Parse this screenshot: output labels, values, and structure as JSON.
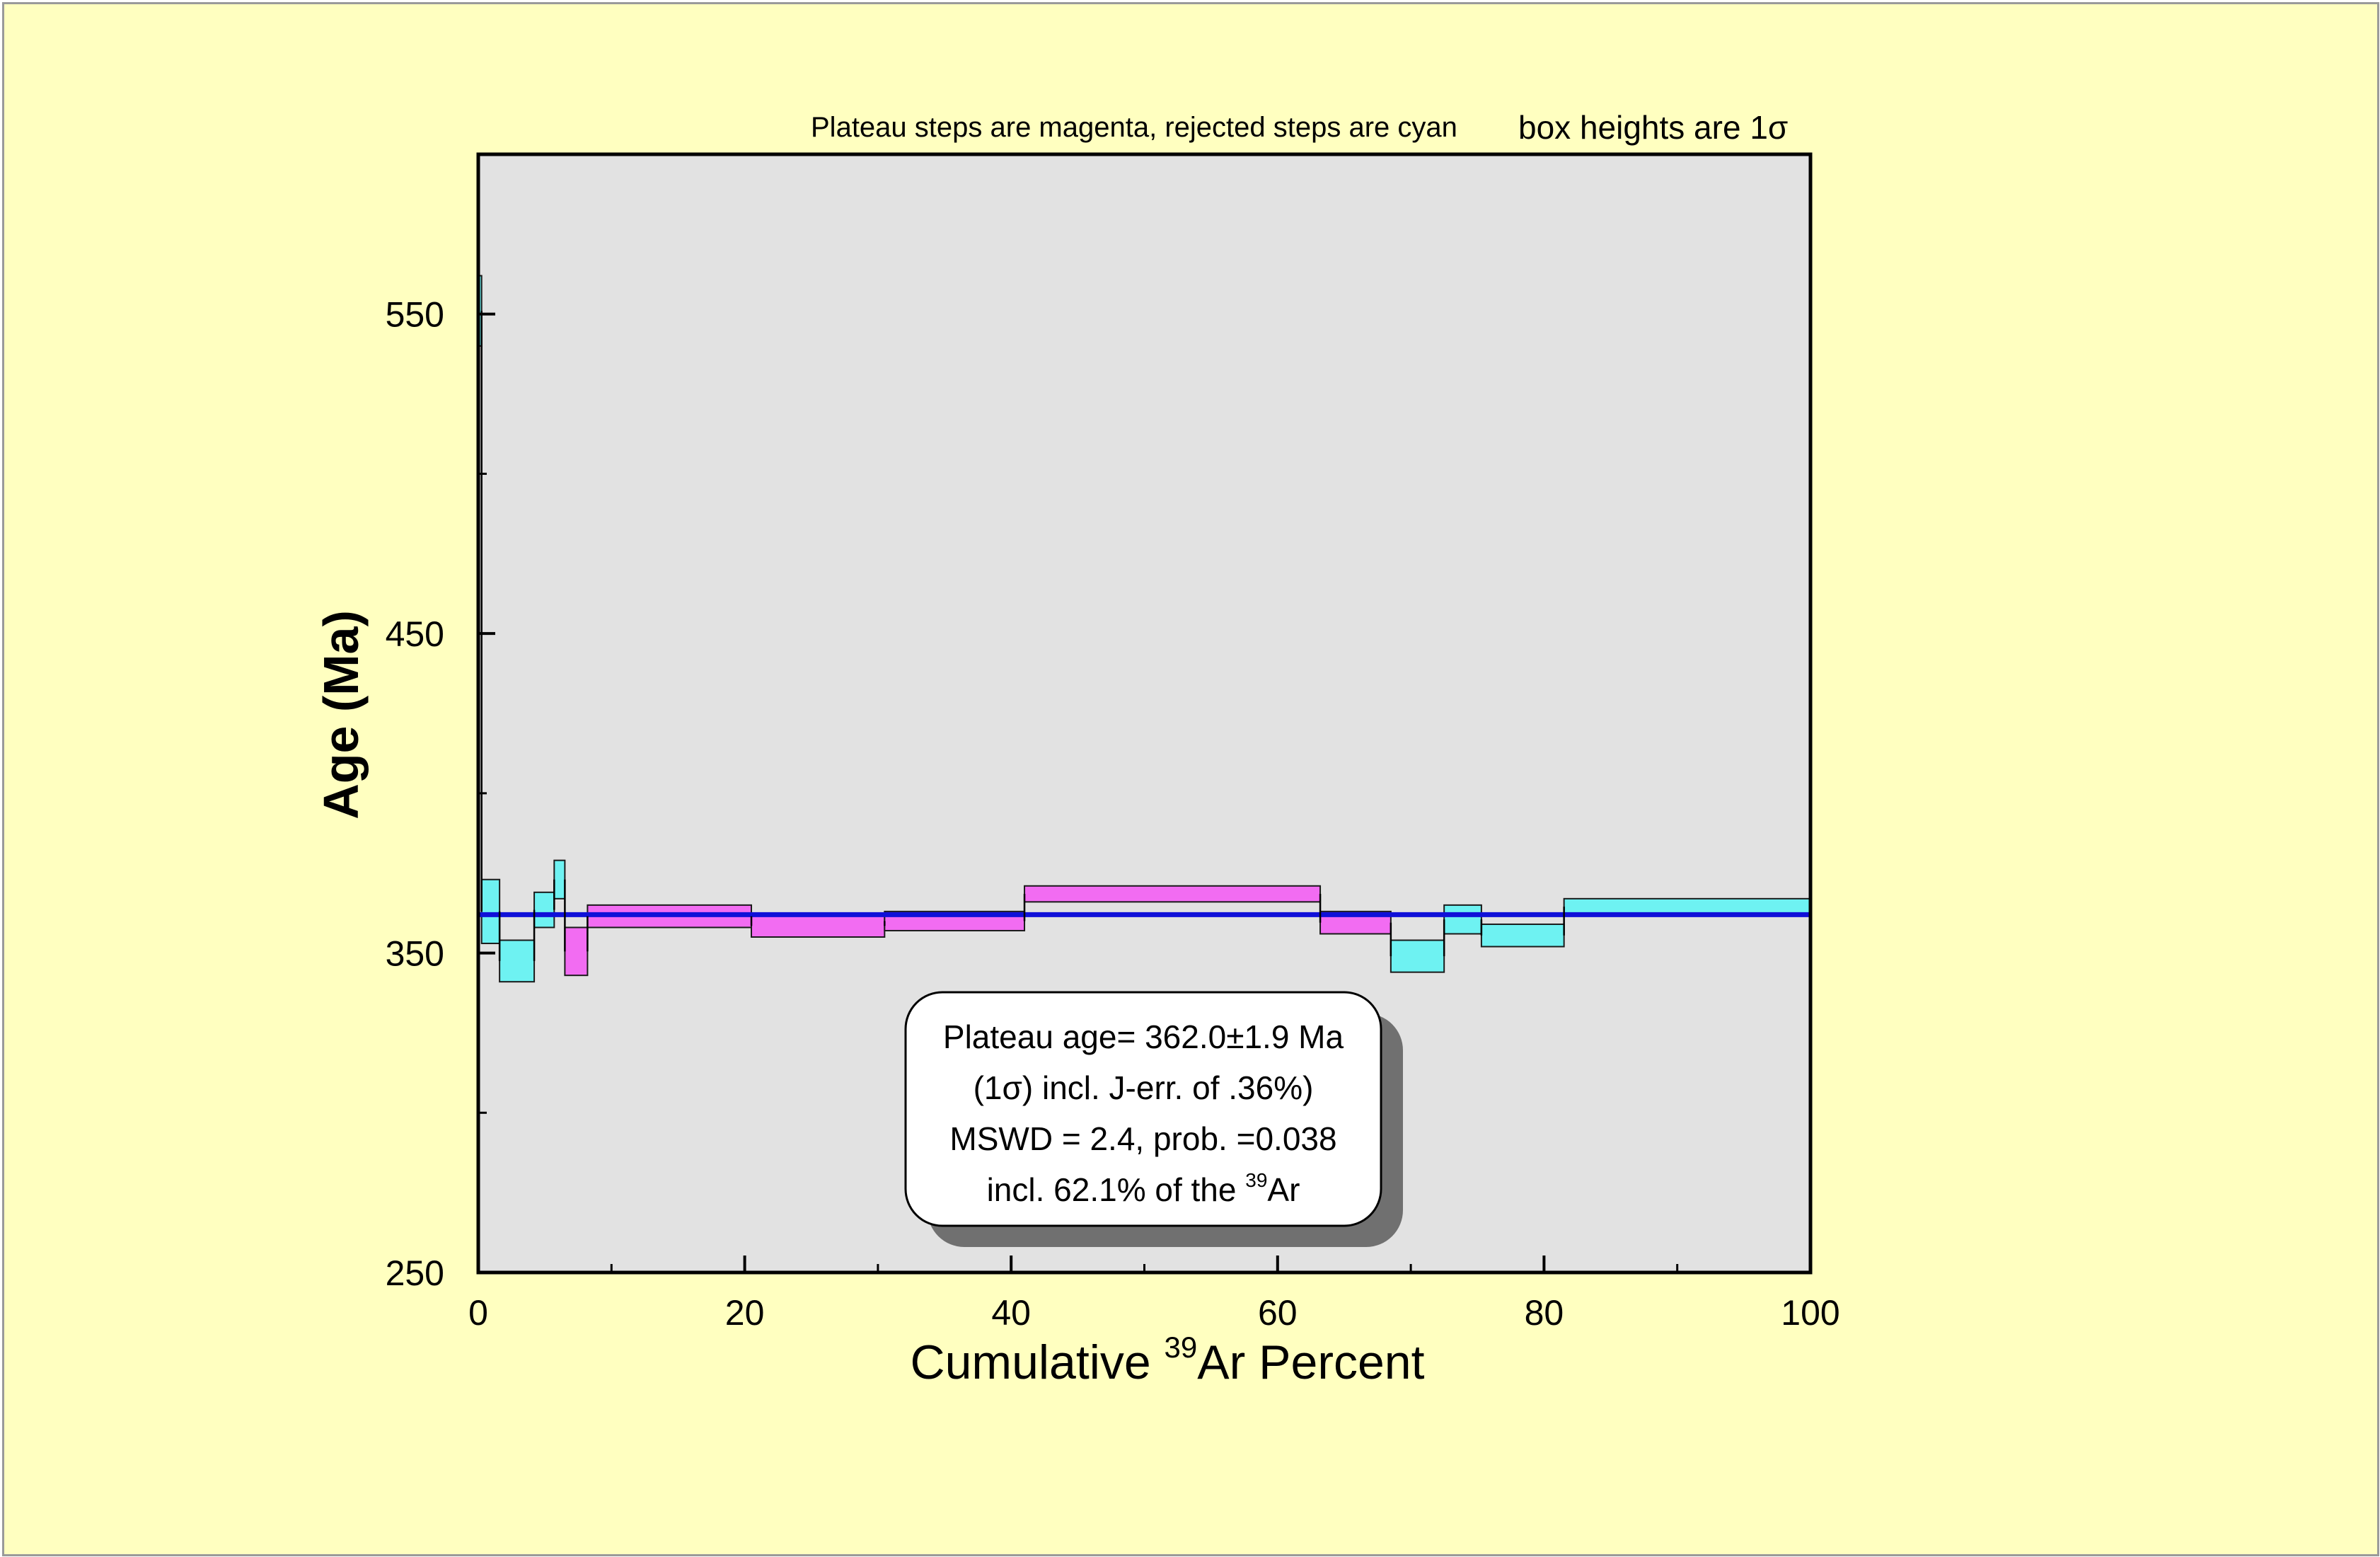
{
  "chart_data": {
    "type": "step-box",
    "top_notes": {
      "steps_note": "Plateau steps are magenta, rejected steps are cyan",
      "box_note": "box heights are 1σ"
    },
    "xlabel": {
      "prefix": "Cumulative ",
      "superscript": "39",
      "suffix": "Ar Percent"
    },
    "ylabel": "Age (Ma)",
    "xlim": [
      0,
      100
    ],
    "ylim": [
      250,
      600
    ],
    "x_ticks": [
      "0",
      "20",
      "40",
      "60",
      "80",
      "100"
    ],
    "x_tick_values": [
      0,
      20,
      40,
      60,
      80,
      100
    ],
    "x_minor_ticks": [
      10,
      30,
      50,
      70,
      90
    ],
    "y_ticks": [
      "250",
      "350",
      "450",
      "550"
    ],
    "y_tick_values": [
      250,
      350,
      450,
      550
    ],
    "y_minor_ticks": [
      300,
      400,
      500
    ],
    "grid": false,
    "colors": {
      "plateau_step": "#f26cf2",
      "rejected_step": "#6ef2f2",
      "plateau_line": "#1010d8",
      "plot_background": "#e2e2e2",
      "page_background": "#ffffc0"
    },
    "plateau_age_line": 362,
    "steps": [
      {
        "x0": 0.0,
        "x1": 0.25,
        "lo": 540,
        "hi": 562,
        "plateau": false
      },
      {
        "x0": 0.25,
        "x1": 1.6,
        "lo": 353,
        "hi": 373,
        "plateau": false
      },
      {
        "x0": 1.6,
        "x1": 4.2,
        "lo": 341,
        "hi": 354,
        "plateau": false
      },
      {
        "x0": 4.2,
        "x1": 5.7,
        "lo": 358,
        "hi": 369,
        "plateau": false
      },
      {
        "x0": 5.7,
        "x1": 6.5,
        "lo": 367,
        "hi": 379,
        "plateau": false
      },
      {
        "x0": 6.5,
        "x1": 8.2,
        "lo": 343,
        "hi": 358,
        "plateau": true
      },
      {
        "x0": 8.2,
        "x1": 20.5,
        "lo": 358,
        "hi": 365,
        "plateau": true
      },
      {
        "x0": 20.5,
        "x1": 30.5,
        "lo": 355,
        "hi": 362,
        "plateau": true
      },
      {
        "x0": 30.5,
        "x1": 41.0,
        "lo": 357,
        "hi": 363,
        "plateau": true
      },
      {
        "x0": 41.0,
        "x1": 63.2,
        "lo": 366,
        "hi": 371,
        "plateau": true
      },
      {
        "x0": 63.2,
        "x1": 68.5,
        "lo": 356,
        "hi": 363,
        "plateau": true
      },
      {
        "x0": 68.5,
        "x1": 72.5,
        "lo": 344,
        "hi": 354,
        "plateau": false
      },
      {
        "x0": 72.5,
        "x1": 75.3,
        "lo": 356,
        "hi": 365,
        "plateau": false
      },
      {
        "x0": 75.3,
        "x1": 81.5,
        "lo": 352,
        "hi": 359,
        "plateau": false
      },
      {
        "x0": 81.5,
        "x1": 100.0,
        "lo": 362,
        "hi": 367,
        "plateau": false
      }
    ],
    "info_box": {
      "line1": "Plateau age= 362.0±1.9 Ma",
      "line2": "(1σ) incl. J-err. of .36%)",
      "line3": "MSWD = 2.4, prob. =0.038",
      "line4_prefix": "incl. 62.1% of the ",
      "line4_superscript": "39",
      "line4_suffix": "Ar"
    }
  }
}
